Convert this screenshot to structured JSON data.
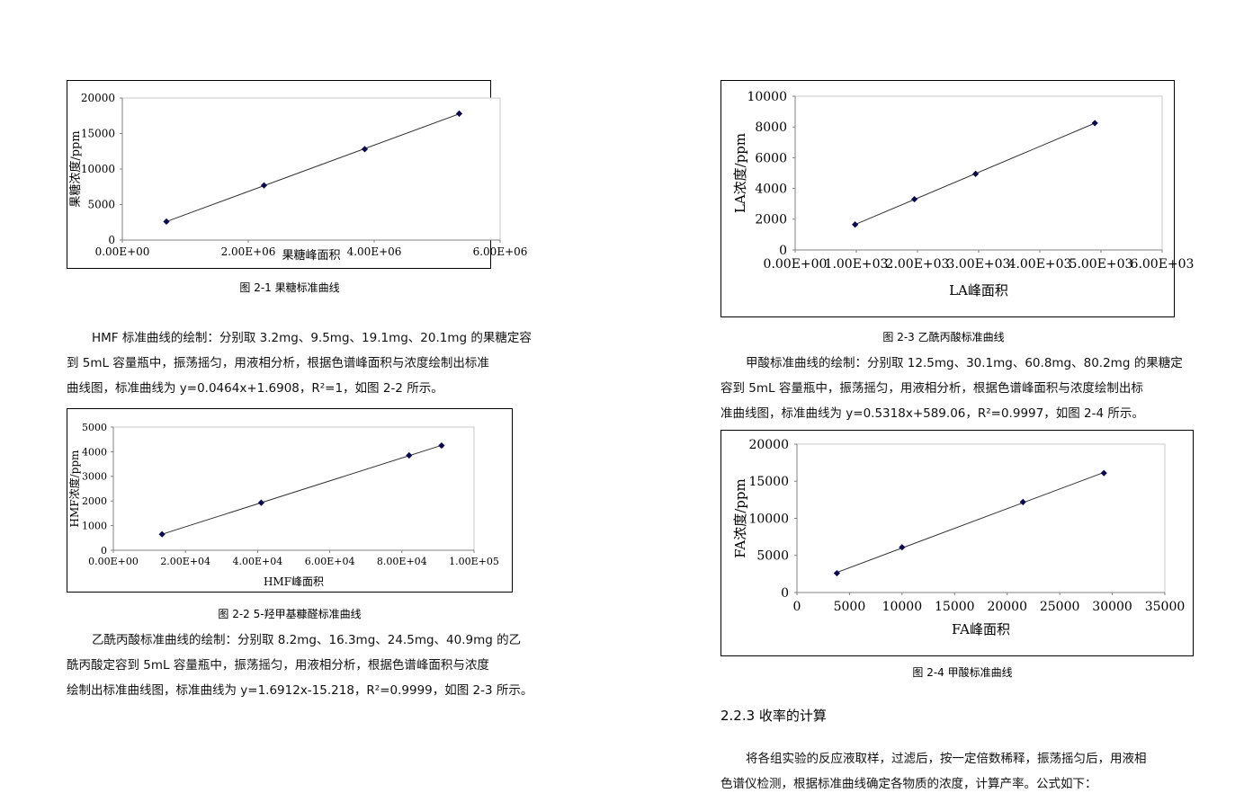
{
  "chart_data": [
    {
      "id": "fructose",
      "type": "scatter",
      "title": "",
      "xlabel": "果糖峰面积",
      "ylabel": "果糖浓度/ppm",
      "xlim": [
        0,
        6000000
      ],
      "ylim": [
        0,
        20000
      ],
      "xticks": [
        0,
        2000000,
        4000000,
        6000000
      ],
      "xtick_labels": [
        "0.00E+00",
        "2.00E+06",
        "4.00E+06",
        "6.00E+06"
      ],
      "yticks": [
        0,
        5000,
        10000,
        15000,
        20000
      ],
      "ytick_labels": [
        "0",
        "5000",
        "10000",
        "15000",
        "20000"
      ],
      "grid": false,
      "trendline": true,
      "x": [
        700000,
        2250000,
        3850000,
        5350000
      ],
      "y": [
        2600,
        7700,
        12800,
        17800
      ],
      "marker_color": "#0a0a50"
    },
    {
      "id": "hmf",
      "type": "scatter",
      "title": "",
      "xlabel": "HMF峰面积",
      "ylabel": "HMF浓度/ppm",
      "xlim": [
        0,
        100000
      ],
      "ylim": [
        0,
        5000
      ],
      "xticks": [
        0,
        20000,
        40000,
        60000,
        80000,
        100000
      ],
      "xtick_labels": [
        "0.00E+00",
        "2.00E+04",
        "4.00E+04",
        "6.00E+04",
        "8.00E+04",
        "1.00E+05"
      ],
      "yticks": [
        0,
        1000,
        2000,
        3000,
        4000,
        5000
      ],
      "ytick_labels": [
        "0",
        "1000",
        "2000",
        "3000",
        "4000",
        "5000"
      ],
      "grid": false,
      "trendline": true,
      "x": [
        13500,
        41000,
        82000,
        91000
      ],
      "y": [
        650,
        1930,
        3850,
        4250
      ],
      "marker_color": "#0a0a50"
    },
    {
      "id": "la",
      "type": "scatter",
      "title": "",
      "xlabel": "LA峰面积",
      "ylabel": "LA浓度/ppm",
      "xlim": [
        0,
        6000
      ],
      "ylim": [
        0,
        10000
      ],
      "xticks": [
        0,
        1000,
        2000,
        3000,
        4000,
        5000,
        6000
      ],
      "xtick_labels": [
        "0.00E+00",
        "1.00E+03",
        "2.00E+03",
        "3.00E+03",
        "4.00E+03",
        "5.00E+03",
        "6.00E+03"
      ],
      "yticks": [
        0,
        2000,
        4000,
        6000,
        8000,
        10000
      ],
      "ytick_labels": [
        "0",
        "2000",
        "4000",
        "6000",
        "8000",
        "10000"
      ],
      "grid": false,
      "trendline": true,
      "x": [
        980,
        1950,
        2950,
        4900
      ],
      "y": [
        1650,
        3300,
        4950,
        8250
      ],
      "marker_color": "#0a0a50"
    },
    {
      "id": "fa",
      "type": "scatter",
      "title": "",
      "xlabel": "FA峰面积",
      "ylabel": "FA浓度/ppm",
      "xlim": [
        0,
        35000
      ],
      "ylim": [
        0,
        20000
      ],
      "xticks": [
        0,
        5000,
        10000,
        15000,
        20000,
        25000,
        30000,
        35000
      ],
      "xtick_labels": [
        "0",
        "5000",
        "10000",
        "15000",
        "20000",
        "25000",
        "30000",
        "35000"
      ],
      "yticks": [
        0,
        5000,
        10000,
        15000,
        20000
      ],
      "ytick_labels": [
        "0",
        "5000",
        "10000",
        "15000",
        "20000"
      ],
      "grid": false,
      "trendline": true,
      "x": [
        3800,
        10000,
        21500,
        29200
      ],
      "y": [
        2600,
        6100,
        12200,
        16100
      ],
      "marker_color": "#0a0a50"
    }
  ],
  "captions": {
    "fig_2_1": "图 2-1  果糖标准曲线",
    "fig_2_2": "图 2-2 5-羟甲基糠醛标准曲线",
    "fig_2_3": "图 2-3  乙酰丙酸标准曲线",
    "fig_2_4": "图 2-4  甲酸标准曲线"
  },
  "paragraphs": {
    "hmf": [
      "HMF 标准曲线的绘制：分别取 3.2mg、9.5mg、19.1mg、20.1mg 的果糖定容",
      "到 5mL 容量瓶中，振荡摇匀，用液相分析，根据色谱峰面积与浓度绘制出标准",
      "曲线图，标准曲线为 y=0.0464x+1.6908，R²=1，如图 2-2 所示。"
    ],
    "la": [
      "乙酰丙酸标准曲线的绘制：分别取  8.2mg、16.3mg、24.5mg、40.9mg  的乙",
      "酰丙酸定容到  5mL 容量瓶中，振荡摇匀，用液相分析，根据色谱峰面积与浓度",
      "绘制出标准曲线图，标准曲线为 y=1.6912x-15.218，R²=0.9999，如图 2-3 所示。"
    ],
    "fa": [
      "甲酸标准曲线的绘制：分别取 12.5mg、30.1mg、60.8mg、80.2mg 的果糖定",
      "容到 5mL 容量瓶中，振荡摇匀，用液相分析，根据色谱峰面积与浓度绘制出标",
      "准曲线图，标准曲线为 y=0.5318x+589.06，R²=0.9997，如图 2-4 所示。"
    ],
    "yield": [
      "将各组实验的反应液取样，过滤后，按一定倍数稀释，振荡摇匀后，用液相",
      "色谱仪检测，根据标准曲线确定各物质的浓度，计算产率。公式如下："
    ]
  },
  "section_heading": "2.2.3  收率的计算"
}
